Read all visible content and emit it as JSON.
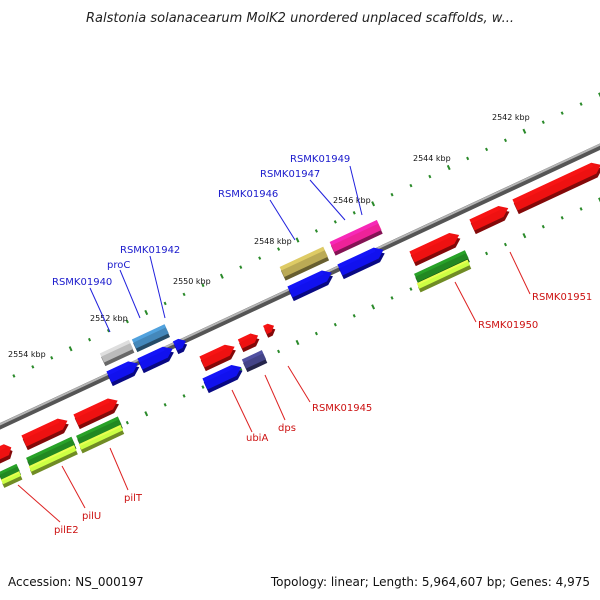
{
  "title": "Ralstonia solanacearum MolK2 unordered unplaced scaffolds, w...",
  "footer": {
    "accession": "Accession: NS_000197",
    "topology": "Topology: linear; Length: 5,964,607 bp; Genes: 4,975"
  },
  "colors": {
    "backbone": "#8a8a8a",
    "tick_dot": "#2a8a2a",
    "label_blue": "#1a1acc",
    "label_red": "#cc1111",
    "gene_red": "#ee1111",
    "gene_blue": "#1111ee",
    "gene_green_dark": "#228822",
    "gene_green_light": "#ccff44",
    "gene_magenta": "#ee2299",
    "gene_olive": "#bbaa55",
    "gene_steelblue": "#4488bb",
    "gene_silver": "#bbbbbb",
    "gene_purple": "#444488"
  },
  "scale_ticks": [
    "2542 kbp",
    "2544 kbp",
    "2546 kbp",
    "2548 kbp",
    "2550 kbp",
    "2552 kbp",
    "2554 kbp"
  ],
  "gene_labels_top": [
    "RSMK01949",
    "RSMK01947",
    "RSMK01946",
    "RSMK01942",
    "proC",
    "RSMK01940"
  ],
  "gene_labels_bottom": [
    "RSMK01951",
    "RSMK01950",
    "RSMK01945",
    "dps",
    "ubiA",
    "pilT",
    "pilU",
    "pilE2"
  ]
}
